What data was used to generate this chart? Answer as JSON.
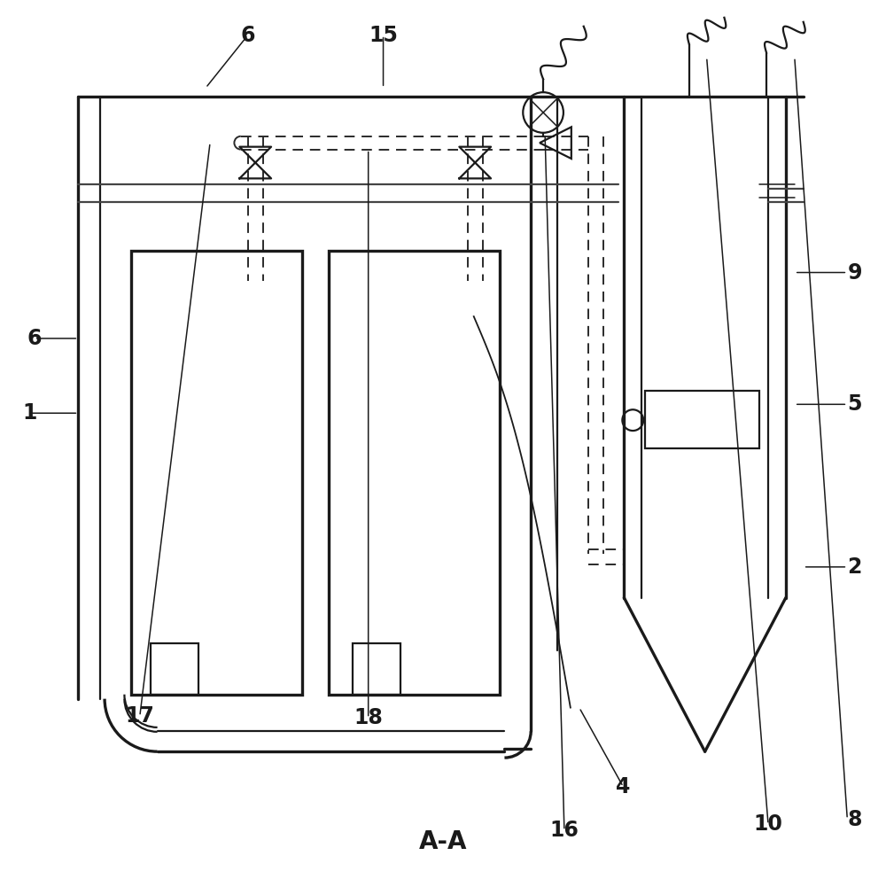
{
  "bg_color": "#ffffff",
  "lc": "#1a1a1a",
  "title": "A-A",
  "fs": 17,
  "lw_thick": 2.4,
  "lw_mid": 1.6,
  "lw_thin": 1.1,
  "lw_dash": 1.4
}
